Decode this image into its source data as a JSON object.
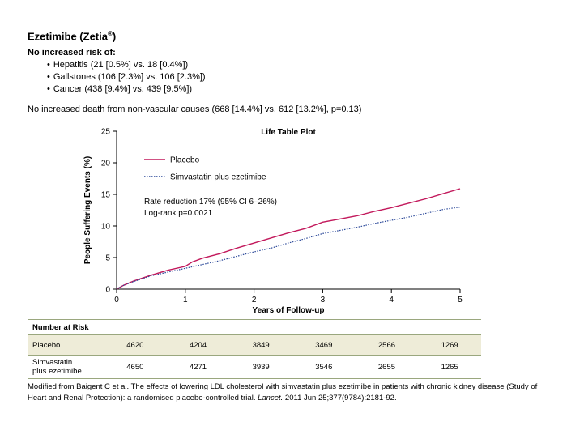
{
  "header": {
    "title": "Ezetimibe (Zetia",
    "title_sup": "®",
    "title_close": ")",
    "subhead": "No increased risk of:",
    "bullets": [
      "Hepatitis (21 [0.5%] vs. 18 [0.4%])",
      "Gallstones (106 [2.3%] vs. 106 [2.3%])",
      "Cancer (438 [9.4%] vs. 439 [9.5%])"
    ],
    "note": "No increased death from non-vascular causes (668 [14.4%] vs. 612 [13.2%], p=0.13)"
  },
  "chart_data": {
    "type": "line",
    "title": "Life Table Plot",
    "xlabel": "Years of Follow-up",
    "ylabel": "People Suffering Events (%)",
    "xlim": [
      0,
      5
    ],
    "ylim": [
      0,
      25
    ],
    "xticks": [
      0,
      1,
      2,
      3,
      4,
      5
    ],
    "yticks": [
      0,
      5,
      10,
      15,
      20,
      25
    ],
    "grid": false,
    "legend_position": "top-left",
    "annotation": [
      "Rate reduction 17% (95% CI 6–26%)",
      "Log-rank p=0.0021"
    ],
    "series": [
      {
        "name": "Placebo",
        "color": "#c2185b",
        "style": "solid",
        "x": [
          0,
          0.1,
          0.25,
          0.5,
          0.75,
          1.0,
          1.1,
          1.25,
          1.5,
          1.75,
          2.0,
          2.25,
          2.5,
          2.75,
          3.0,
          3.25,
          3.5,
          3.75,
          4.0,
          4.25,
          4.5,
          4.75,
          5.0
        ],
        "values": [
          0,
          0.6,
          1.3,
          2.2,
          3.0,
          3.6,
          4.3,
          4.9,
          5.6,
          6.5,
          7.3,
          8.1,
          8.9,
          9.6,
          10.6,
          11.1,
          11.6,
          12.3,
          12.9,
          13.6,
          14.3,
          15.1,
          15.9
        ]
      },
      {
        "name": "Simvastatin plus ezetimibe",
        "color": "#2d4a9a",
        "style": "dotted",
        "x": [
          0,
          0.1,
          0.25,
          0.5,
          0.75,
          1.0,
          1.25,
          1.5,
          1.75,
          2.0,
          2.25,
          2.5,
          2.75,
          3.0,
          3.25,
          3.5,
          3.75,
          4.0,
          4.25,
          4.5,
          4.75,
          5.0
        ],
        "values": [
          0,
          0.6,
          1.2,
          2.1,
          2.7,
          3.3,
          3.9,
          4.5,
          5.2,
          5.9,
          6.5,
          7.3,
          8.0,
          8.8,
          9.3,
          9.8,
          10.4,
          10.9,
          11.4,
          12.0,
          12.6,
          13.0
        ]
      }
    ]
  },
  "risk_table": {
    "header": "Number at Risk",
    "rows": [
      {
        "label": [
          "Placebo"
        ],
        "values": [
          "4620",
          "4204",
          "3849",
          "3469",
          "2566",
          "1269"
        ]
      },
      {
        "label": [
          "Simvastatin",
          "plus ezetimibe"
        ],
        "values": [
          "4650",
          "4271",
          "3939",
          "3546",
          "2655",
          "1265"
        ]
      }
    ]
  },
  "footnote": {
    "part1": "Modified from Baigent C et al. The effects of lowering LDL cholesterol with simvastatin plus ezetimibe in patients with chronic kidney disease (Study of Heart and Renal Protection): a randomised placebo-controlled trial. ",
    "journal": "Lancet.",
    "part2": " 2011 Jun 25;377(9784):2181-92."
  }
}
